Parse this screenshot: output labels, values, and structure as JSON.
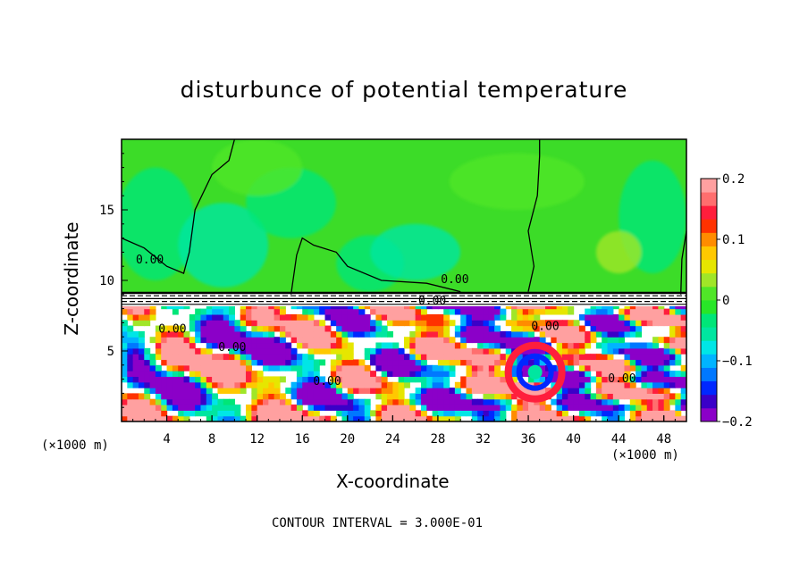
{
  "chart_data": {
    "type": "heatmap",
    "title": "disturbunce of potential temperature",
    "xlabel": "X-coordinate",
    "ylabel": "Z-coordinate",
    "x_unit": "(×1000 m)",
    "x_unit_right": "(×1000 m)",
    "xlim": [
      0,
      50
    ],
    "ylim": [
      0,
      20
    ],
    "x_ticks": [
      4,
      8,
      12,
      16,
      20,
      24,
      28,
      32,
      36,
      40,
      44,
      48
    ],
    "y_ticks": [
      5,
      10,
      15
    ],
    "colorbar": {
      "range": [
        -0.2,
        0.2
      ],
      "tick_values": [
        0.2,
        0.1,
        0,
        -0.1,
        -0.2
      ],
      "tick_labels": [
        "0.2",
        "0.1",
        "0",
        "−0.1",
        "−0.2"
      ],
      "colors": [
        "#8b00c8",
        "#3a00c8",
        "#0028ff",
        "#0078ff",
        "#00b4ff",
        "#00e6e6",
        "#00e6a0",
        "#00e678",
        "#28e628",
        "#50e628",
        "#a0e628",
        "#e6e600",
        "#ffc800",
        "#ff8c00",
        "#ff3200",
        "#ff1e3c",
        "#ff6e6e",
        "#ffa0a0"
      ]
    },
    "upper_layer_value": 0.0,
    "interface_height": 9.0,
    "contour_labels": [
      {
        "text": "0.00",
        "x": 2.5,
        "z": 11.2
      },
      {
        "text": "0.00",
        "x": 29.5,
        "z": 9.8
      },
      {
        "text": "0.00",
        "x": 4.5,
        "z": 6.3
      },
      {
        "text": "0.00",
        "x": 9.8,
        "z": 5.0
      },
      {
        "text": "0.00",
        "x": 18.2,
        "z": 2.6
      },
      {
        "text": "0.00",
        "x": 37.5,
        "z": 6.5
      },
      {
        "text": "0.00",
        "x": 44.3,
        "z": 2.8
      },
      {
        "text": "0.00",
        "x": 27.5,
        "z": 8.3
      }
    ],
    "contour_interval": "CONTOUR INTERVAL = 3.000E-01"
  },
  "colors": {
    "upper_field": "#3cdc28",
    "background": "#ffffff"
  }
}
